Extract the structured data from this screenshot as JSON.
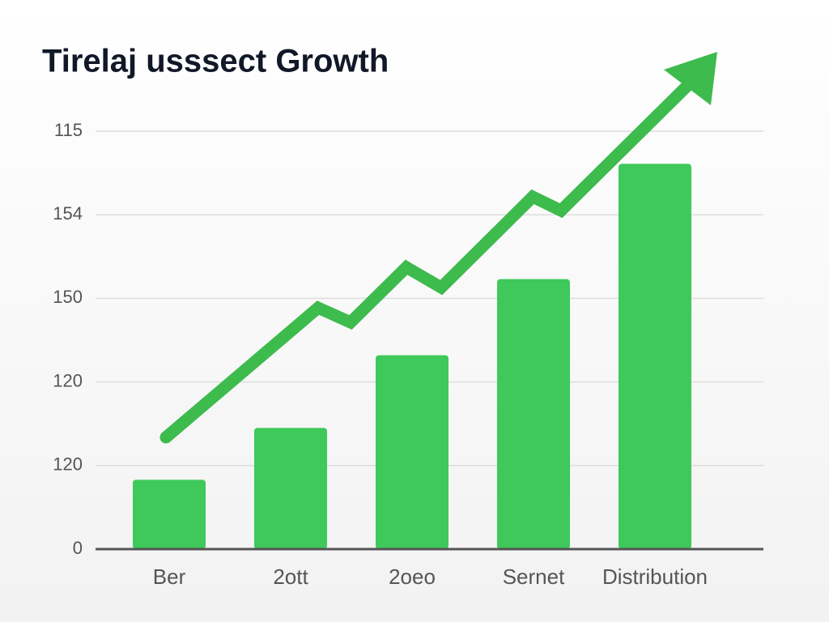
{
  "chart_data": {
    "type": "bar",
    "title": "Tirelaj usssect Growth",
    "categories": [
      "Ber",
      "2ott",
      "2oeo",
      "Sernet",
      "Distribution"
    ],
    "values": [
      0.83,
      1.45,
      2.32,
      3.23,
      4.61
    ],
    "color": "#3ec95a",
    "ylim": [
      0,
      5
    ],
    "yticks": [
      0,
      {
        "value": 1,
        "label": "120"
      },
      {
        "value": 2,
        "label": "120"
      },
      {
        "value": 3,
        "label": "150"
      },
      {
        "value": 4,
        "label": "154"
      },
      {
        "value": 5,
        "label": "115"
      }
    ],
    "grid": true
  }
}
